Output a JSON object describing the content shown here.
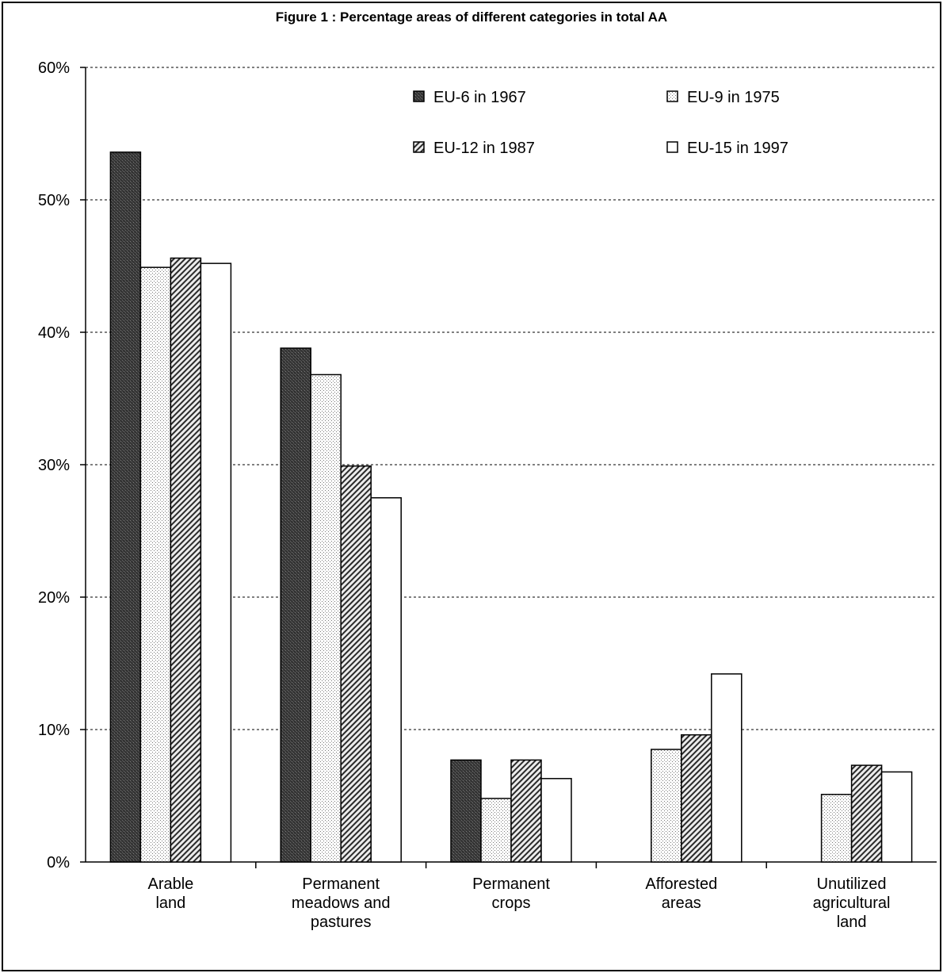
{
  "chart_data": {
    "type": "bar",
    "title": "Figure 1 : Percentage areas of different categories in total AA",
    "categories": [
      [
        "Arable",
        "land"
      ],
      [
        "Permanent",
        "meadows and",
        "pastures"
      ],
      [
        "Permanent",
        "crops"
      ],
      [
        "Afforested",
        "areas"
      ],
      [
        "Unutilized",
        "agricultural",
        "land"
      ]
    ],
    "series": [
      {
        "name": "EU-6 in 1967",
        "values": [
          53.6,
          38.8,
          7.7,
          null,
          null
        ],
        "pattern": "dark"
      },
      {
        "name": "EU-9 in 1975",
        "values": [
          44.9,
          36.8,
          4.8,
          8.5,
          5.1
        ],
        "pattern": "dots"
      },
      {
        "name": "EU-12 in 1987",
        "values": [
          45.6,
          29.9,
          7.7,
          9.6,
          7.3
        ],
        "pattern": "hatch"
      },
      {
        "name": "EU-15 in 1997",
        "values": [
          45.2,
          27.5,
          6.3,
          14.2,
          6.8
        ],
        "pattern": "white"
      }
    ],
    "y_ticks": [
      "0%",
      "10%",
      "20%",
      "30%",
      "40%",
      "50%",
      "60%"
    ],
    "ylim": [
      0,
      60
    ],
    "grid": "horizontal dashed",
    "legend_position": "top-right"
  }
}
